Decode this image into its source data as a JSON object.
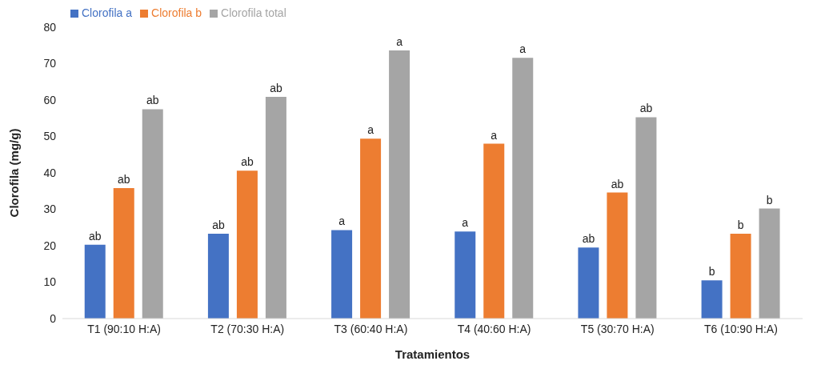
{
  "chart_data": {
    "type": "bar",
    "xlabel": "Tratamientos",
    "ylabel": "Clorofila (mg/g)",
    "categories": [
      "T1 (90:10 H:A)",
      "T2 (70:30 H:A)",
      "T3 (60:40 H:A)",
      "T4 (40:60 H:A)",
      "T5 (30:70 H:A)",
      "T6 (10:90 H:A)"
    ],
    "series": [
      {
        "name": "Clorofila a",
        "color": "#4472c4",
        "values": [
          20.3,
          23.3,
          24.3,
          23.9,
          19.5,
          10.5
        ],
        "value_labels": [
          "ab",
          "ab",
          "a",
          "a",
          "ab",
          "b"
        ]
      },
      {
        "name": "Clorofila b",
        "color": "#ed7d31",
        "values": [
          35.8,
          40.6,
          49.4,
          48.0,
          34.6,
          23.3
        ],
        "value_labels": [
          "ab",
          "ab",
          "a",
          "a",
          "ab",
          "b"
        ]
      },
      {
        "name": "Clorofila total",
        "color": "#a5a5a5",
        "values": [
          57.5,
          60.9,
          73.6,
          71.6,
          55.3,
          30.2
        ],
        "value_labels": [
          "ab",
          "ab",
          "a",
          "a",
          "ab",
          "b"
        ]
      }
    ],
    "ylim": [
      0,
      80
    ],
    "yticks": [
      0,
      10,
      20,
      30,
      40,
      50,
      60,
      70,
      80
    ],
    "grid": false,
    "legend": "top left"
  }
}
